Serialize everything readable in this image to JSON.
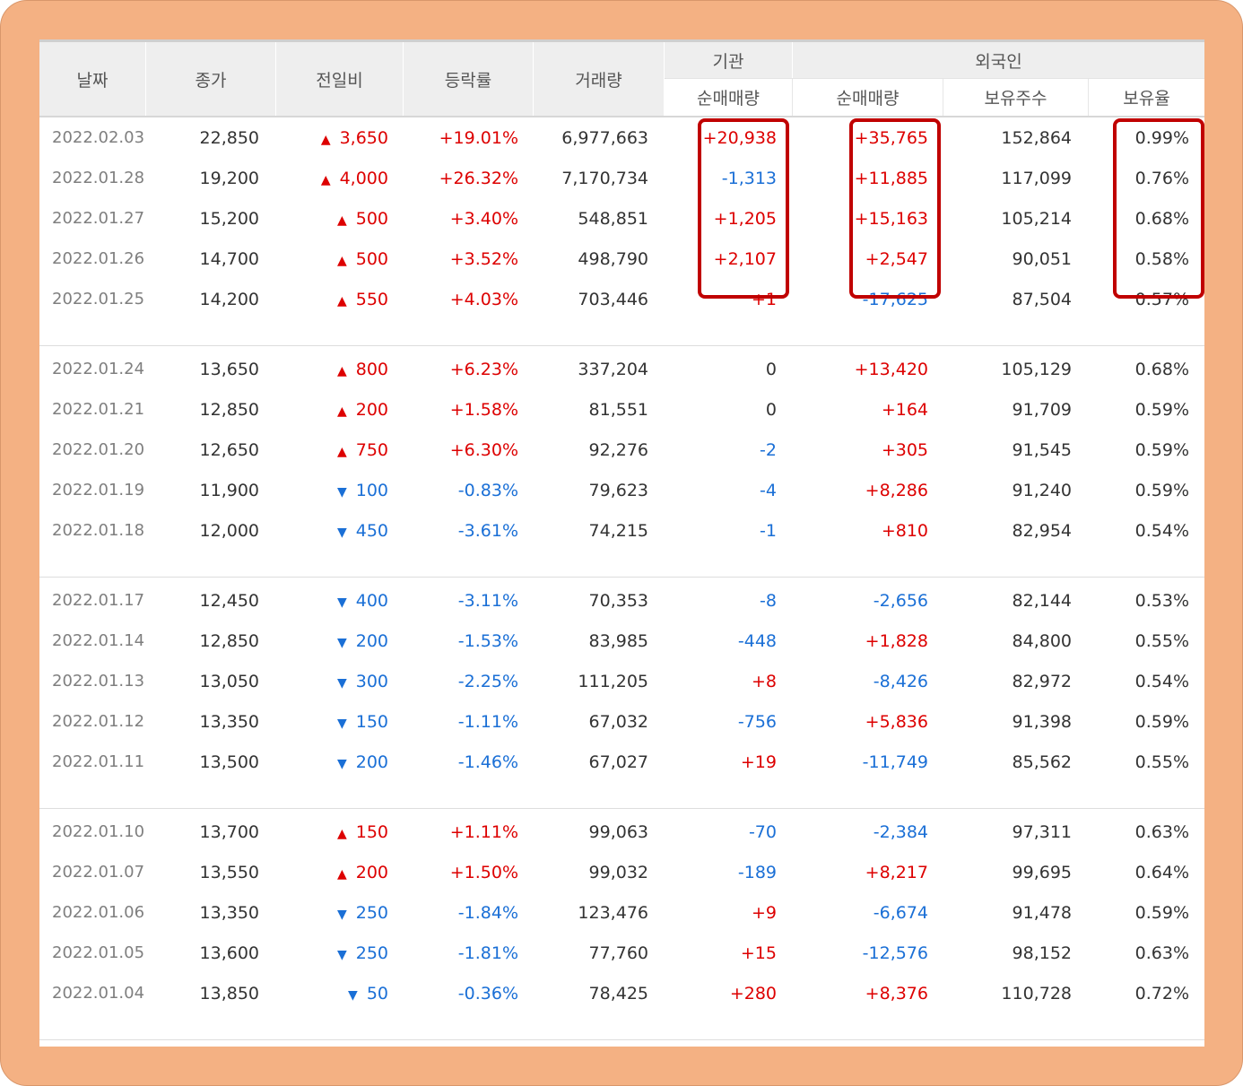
{
  "headers": {
    "date": "날짜",
    "close": "종가",
    "change": "전일비",
    "rate": "등락률",
    "volume": "거래량",
    "institution": "기관",
    "foreign": "외국인",
    "inst_net": "순매매량",
    "foreign_net": "순매매량",
    "foreign_shares": "보유주수",
    "foreign_ratio": "보유율"
  },
  "colors": {
    "up": "#dd0000",
    "down": "#1a6fd6",
    "highlight": "#c00000",
    "frame": "#f4b183"
  },
  "rows": [
    {
      "date": "2022.02.03",
      "close": "22,850",
      "dir": "up",
      "change": "3,650",
      "rate": "+19.01%",
      "volume": "6,977,663",
      "inst": "+20,938",
      "foreign": "+35,765",
      "shares": "152,864",
      "ratio": "0.99%"
    },
    {
      "date": "2022.01.28",
      "close": "19,200",
      "dir": "up",
      "change": "4,000",
      "rate": "+26.32%",
      "volume": "7,170,734",
      "inst": "-1,313",
      "foreign": "+11,885",
      "shares": "117,099",
      "ratio": "0.76%"
    },
    {
      "date": "2022.01.27",
      "close": "15,200",
      "dir": "up",
      "change": "500",
      "rate": "+3.40%",
      "volume": "548,851",
      "inst": "+1,205",
      "foreign": "+15,163",
      "shares": "105,214",
      "ratio": "0.68%"
    },
    {
      "date": "2022.01.26",
      "close": "14,700",
      "dir": "up",
      "change": "500",
      "rate": "+3.52%",
      "volume": "498,790",
      "inst": "+2,107",
      "foreign": "+2,547",
      "shares": "90,051",
      "ratio": "0.58%"
    },
    {
      "date": "2022.01.25",
      "close": "14,200",
      "dir": "up",
      "change": "550",
      "rate": "+4.03%",
      "volume": "703,446",
      "inst": "+1",
      "foreign": "-17,625",
      "shares": "87,504",
      "ratio": "0.57%"
    },
    {
      "date": "2022.01.24",
      "close": "13,650",
      "dir": "up",
      "change": "800",
      "rate": "+6.23%",
      "volume": "337,204",
      "inst": "0",
      "foreign": "+13,420",
      "shares": "105,129",
      "ratio": "0.68%"
    },
    {
      "date": "2022.01.21",
      "close": "12,850",
      "dir": "up",
      "change": "200",
      "rate": "+1.58%",
      "volume": "81,551",
      "inst": "0",
      "foreign": "+164",
      "shares": "91,709",
      "ratio": "0.59%"
    },
    {
      "date": "2022.01.20",
      "close": "12,650",
      "dir": "up",
      "change": "750",
      "rate": "+6.30%",
      "volume": "92,276",
      "inst": "-2",
      "foreign": "+305",
      "shares": "91,545",
      "ratio": "0.59%"
    },
    {
      "date": "2022.01.19",
      "close": "11,900",
      "dir": "down",
      "change": "100",
      "rate": "-0.83%",
      "volume": "79,623",
      "inst": "-4",
      "foreign": "+8,286",
      "shares": "91,240",
      "ratio": "0.59%"
    },
    {
      "date": "2022.01.18",
      "close": "12,000",
      "dir": "down",
      "change": "450",
      "rate": "-3.61%",
      "volume": "74,215",
      "inst": "-1",
      "foreign": "+810",
      "shares": "82,954",
      "ratio": "0.54%"
    },
    {
      "date": "2022.01.17",
      "close": "12,450",
      "dir": "down",
      "change": "400",
      "rate": "-3.11%",
      "volume": "70,353",
      "inst": "-8",
      "foreign": "-2,656",
      "shares": "82,144",
      "ratio": "0.53%"
    },
    {
      "date": "2022.01.14",
      "close": "12,850",
      "dir": "down",
      "change": "200",
      "rate": "-1.53%",
      "volume": "83,985",
      "inst": "-448",
      "foreign": "+1,828",
      "shares": "84,800",
      "ratio": "0.55%"
    },
    {
      "date": "2022.01.13",
      "close": "13,050",
      "dir": "down",
      "change": "300",
      "rate": "-2.25%",
      "volume": "111,205",
      "inst": "+8",
      "foreign": "-8,426",
      "shares": "82,972",
      "ratio": "0.54%"
    },
    {
      "date": "2022.01.12",
      "close": "13,350",
      "dir": "down",
      "change": "150",
      "rate": "-1.11%",
      "volume": "67,032",
      "inst": "-756",
      "foreign": "+5,836",
      "shares": "91,398",
      "ratio": "0.59%"
    },
    {
      "date": "2022.01.11",
      "close": "13,500",
      "dir": "down",
      "change": "200",
      "rate": "-1.46%",
      "volume": "67,027",
      "inst": "+19",
      "foreign": "-11,749",
      "shares": "85,562",
      "ratio": "0.55%"
    },
    {
      "date": "2022.01.10",
      "close": "13,700",
      "dir": "up",
      "change": "150",
      "rate": "+1.11%",
      "volume": "99,063",
      "inst": "-70",
      "foreign": "-2,384",
      "shares": "97,311",
      "ratio": "0.63%"
    },
    {
      "date": "2022.01.07",
      "close": "13,550",
      "dir": "up",
      "change": "200",
      "rate": "+1.50%",
      "volume": "99,032",
      "inst": "-189",
      "foreign": "+8,217",
      "shares": "99,695",
      "ratio": "0.64%"
    },
    {
      "date": "2022.01.06",
      "close": "13,350",
      "dir": "down",
      "change": "250",
      "rate": "-1.84%",
      "volume": "123,476",
      "inst": "+9",
      "foreign": "-6,674",
      "shares": "91,478",
      "ratio": "0.59%"
    },
    {
      "date": "2022.01.05",
      "close": "13,600",
      "dir": "down",
      "change": "250",
      "rate": "-1.81%",
      "volume": "77,760",
      "inst": "+15",
      "foreign": "-12,576",
      "shares": "98,152",
      "ratio": "0.63%"
    },
    {
      "date": "2022.01.04",
      "close": "13,850",
      "dir": "down",
      "change": "50",
      "rate": "-0.36%",
      "volume": "78,425",
      "inst": "+280",
      "foreign": "+8,376",
      "shares": "110,728",
      "ratio": "0.72%"
    }
  ]
}
